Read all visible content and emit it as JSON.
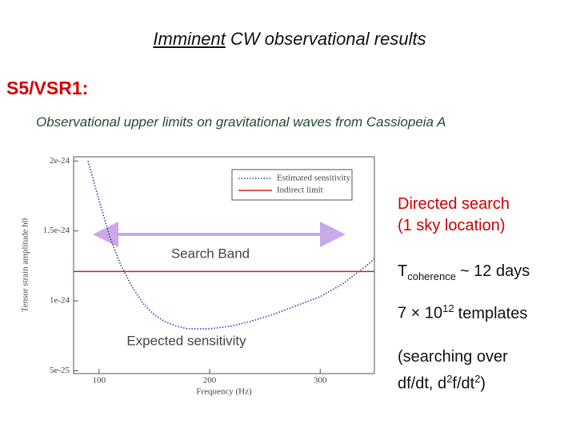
{
  "slide": {
    "title_emphasis": "Imminent",
    "title_rest": "CW observational results",
    "heading": "S5/VSR1:",
    "subtitle": "Observational upper limits on gravitational waves from Cassiopeia A",
    "notes": [
      {
        "lines": [
          "Directed search",
          "(1 sky location)"
        ]
      },
      {
        "base": "T",
        "sub": "coherence",
        "rest": "~ 12 days"
      },
      {
        "base": "7 × 10",
        "sup": "12",
        "rest": "templates"
      },
      {
        "line1": "(searching over",
        "a": "df/dt, d",
        "sup1": "2",
        "b": "f/dt",
        "sup2": "2",
        "c": ")"
      }
    ]
  },
  "chart_data": {
    "type": "line",
    "x_label": "Frequency (Hz)",
    "y_label": "Tensor strain amplitude h0",
    "x": [
      90,
      100,
      110,
      120,
      130,
      140,
      150,
      160,
      170,
      180,
      200,
      220,
      240,
      260,
      280,
      300,
      320,
      340,
      349
    ],
    "series": [
      {
        "name": "Estimated sensitivity",
        "color": "#2a3fa8",
        "values": [
          2e-24,
          1.72e-24,
          1.45e-24,
          1.25e-24,
          1.1e-24,
          9.8e-25,
          9e-25,
          8.5e-25,
          8.2e-25,
          8e-25,
          8e-25,
          8.2e-25,
          8.6e-25,
          9.1e-25,
          9.7e-25,
          1.03e-24,
          1.12e-24,
          1.24e-24,
          1.3e-24
        ]
      }
    ],
    "hlines": [
      {
        "name": "Indirect limit",
        "color": "#d42020",
        "value": 1.21e-24
      }
    ],
    "xlim": [
      77,
      349
    ],
    "ylim": [
      4.8e-25,
      2.03e-24
    ],
    "xticks": [
      100,
      200,
      300
    ],
    "yticks": [
      5e-25,
      1e-24,
      1.5e-24,
      2e-24
    ],
    "legend": "upper right",
    "annotations": [
      {
        "text": "Search Band",
        "color": "#9b7fd6"
      },
      {
        "text": "Expected sensitivity",
        "color": "#2238b8"
      }
    ]
  }
}
